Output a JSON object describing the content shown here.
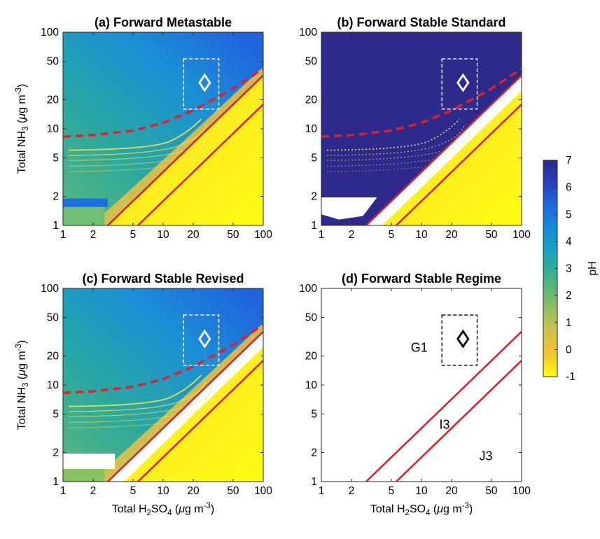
{
  "chart_data": [
    {
      "type": "heatmap",
      "panel": "a",
      "title": "(a) Forward Metastable",
      "xlabel_parts": [
        "Total H",
        "2",
        "SO",
        "4",
        " (",
        "μ",
        "g m",
        "-3",
        ")"
      ],
      "ylabel_parts": [
        "Total NH",
        "3",
        " (",
        "μ",
        "g m",
        "-3",
        ")"
      ],
      "x_scale": "log",
      "y_scale": "log",
      "xlim": [
        1,
        100
      ],
      "ylim": [
        1,
        100
      ],
      "xticks": [
        "1",
        "2",
        "5",
        "10",
        "20",
        "50",
        "100"
      ],
      "yticks": [
        "1",
        "2",
        "5",
        "10",
        "20",
        "50",
        "100"
      ],
      "show_xlabel": false,
      "show_ylabel": true,
      "dashed_curve": {
        "color": "#e0202a",
        "x": [
          1,
          2,
          5,
          10,
          20,
          50,
          100
        ],
        "y": [
          8.3,
          8.6,
          9.6,
          11.5,
          15.5,
          26,
          42
        ]
      },
      "regime_lines": [
        {
          "color": "#e0202a",
          "x": [
            2.8,
            100
          ],
          "y": [
            1,
            35.7
          ]
        },
        {
          "color": "#e0202a",
          "x": [
            5.6,
            100
          ],
          "y": [
            1,
            17.9
          ]
        }
      ],
      "dashed_box": {
        "color": "#ffffff",
        "x": [
          16,
          36
        ],
        "y": [
          16,
          53
        ]
      },
      "diamond": {
        "color": "#ffffff",
        "x": 26,
        "y": 30
      }
    },
    {
      "type": "heatmap",
      "panel": "b",
      "title": "(b) Forward Stable Standard",
      "x_scale": "log",
      "y_scale": "log",
      "xlim": [
        1,
        100
      ],
      "ylim": [
        1,
        100
      ],
      "xticks": [
        "1",
        "2",
        "5",
        "10",
        "20",
        "50",
        "100"
      ],
      "yticks": [
        "1",
        "2",
        "5",
        "10",
        "20",
        "50",
        "100"
      ],
      "show_xlabel": false,
      "show_ylabel": false,
      "dashed_curve": {
        "color": "#e0202a",
        "x": [
          1,
          2,
          5,
          10,
          20,
          50,
          100
        ],
        "y": [
          8.3,
          8.6,
          9.6,
          11.5,
          15.5,
          26,
          42
        ]
      },
      "regime_lines": [
        {
          "color": "#e0202a",
          "x": [
            2.8,
            100
          ],
          "y": [
            1,
            35.7
          ]
        },
        {
          "color": "#e0202a",
          "x": [
            5.6,
            100
          ],
          "y": [
            1,
            17.9
          ]
        }
      ],
      "dashed_box": {
        "color": "#ffffff",
        "x": [
          16,
          36
        ],
        "y": [
          16,
          53
        ]
      },
      "diamond": {
        "color": "#ffffff",
        "x": 26,
        "y": 30
      }
    },
    {
      "type": "heatmap",
      "panel": "c",
      "title": "(c) Forward Stable Revised",
      "xlabel_parts": [
        "Total H",
        "2",
        "SO",
        "4",
        " (",
        "μ",
        "g m",
        "-3",
        ")"
      ],
      "ylabel_parts": [
        "Total NH",
        "3",
        " (",
        "μ",
        "g m",
        "-3",
        ")"
      ],
      "x_scale": "log",
      "y_scale": "log",
      "xlim": [
        1,
        100
      ],
      "ylim": [
        1,
        100
      ],
      "xticks": [
        "1",
        "2",
        "5",
        "10",
        "20",
        "50",
        "100"
      ],
      "yticks": [
        "1",
        "2",
        "5",
        "10",
        "20",
        "50",
        "100"
      ],
      "show_xlabel": true,
      "show_ylabel": true,
      "dashed_curve": {
        "color": "#e0202a",
        "x": [
          1,
          2,
          5,
          10,
          20,
          50,
          100
        ],
        "y": [
          8.3,
          8.6,
          9.6,
          11.5,
          15.5,
          26,
          42
        ]
      },
      "regime_lines": [
        {
          "color": "#e0202a",
          "x": [
            2.8,
            100
          ],
          "y": [
            1,
            35.7
          ]
        },
        {
          "color": "#e0202a",
          "x": [
            5.6,
            100
          ],
          "y": [
            1,
            17.9
          ]
        }
      ],
      "dashed_box": {
        "color": "#ffffff",
        "x": [
          16,
          36
        ],
        "y": [
          16,
          53
        ]
      },
      "diamond": {
        "color": "#ffffff",
        "x": 26,
        "y": 30
      }
    },
    {
      "type": "line",
      "panel": "d",
      "title": "(d) Forward Stable Regime",
      "xlabel_parts": [
        "Total H",
        "2",
        "SO",
        "4",
        " (",
        "μ",
        "g m",
        "-3",
        ")"
      ],
      "x_scale": "log",
      "y_scale": "log",
      "xlim": [
        1,
        100
      ],
      "ylim": [
        1,
        100
      ],
      "xticks": [
        "1",
        "2",
        "5",
        "10",
        "20",
        "50",
        "100"
      ],
      "yticks": [
        "1",
        "2",
        "5",
        "10",
        "20",
        "50",
        "100"
      ],
      "show_xlabel": true,
      "show_ylabel": false,
      "regime_lines": [
        {
          "color": "#e0202a",
          "x": [
            2.8,
            100
          ],
          "y": [
            1,
            35.7
          ]
        },
        {
          "color": "#e0202a",
          "x": [
            5.6,
            100
          ],
          "y": [
            1,
            17.9
          ]
        }
      ],
      "dashed_box": {
        "color": "#000000",
        "x": [
          16,
          36
        ],
        "y": [
          16,
          53
        ]
      },
      "diamond": {
        "color": "#000000",
        "x": 26,
        "y": 30
      },
      "annotations": [
        {
          "text": "G1",
          "x": 9.5,
          "y": 24
        },
        {
          "text": "I3",
          "x": 17,
          "y": 3.8
        },
        {
          "text": "J3",
          "x": 44,
          "y": 1.8
        }
      ]
    }
  ],
  "colorbar": {
    "label": "pH",
    "min": -1,
    "max": 7,
    "ticks": [
      "7",
      "6",
      "5",
      "4",
      "3",
      "2",
      "1",
      "0",
      "-1"
    ],
    "stops": [
      "#ffff00",
      "#f3c431",
      "#d4c24a",
      "#9cc05c",
      "#5cb875",
      "#2fad99",
      "#17a0c3",
      "#1687d9",
      "#1f66e0",
      "#2b3fb8",
      "#2a2a8c"
    ]
  }
}
